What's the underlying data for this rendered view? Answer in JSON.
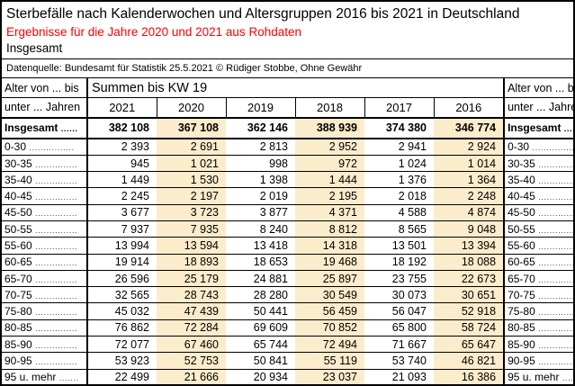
{
  "header": {
    "title": "Sterbefälle nach Kalenderwochen und Altersgruppen 2016 bis 2021 in Deutschland",
    "subtitle_red": "Ergebnisse für die Jahre 2020 und 2021 aus Rohdaten",
    "scope_label": "Insgesamt",
    "source_note": "Datenquelle: Bundesamt für Statistik 25.5.2021 © Rüdiger Stobbe, Ohne Gewähr"
  },
  "colors": {
    "highlight_column_bg": "#FBECCC",
    "subtitle_red": "#FF0000",
    "border": "#000000"
  },
  "table": {
    "corner_header_line1": "Alter von ... bis",
    "corner_header_line2": "unter ... Jahren",
    "span_header": "Summen bis KW 19",
    "years": [
      "2021",
      "2020",
      "2019",
      "2018",
      "2017",
      "2016"
    ],
    "highlighted_years": [
      "2020",
      "2018",
      "2016"
    ],
    "totals": {
      "label": "Insgesamt",
      "dots": "......",
      "values": [
        "382 108",
        "367 108",
        "362 146",
        "388 939",
        "374 380",
        "346 774"
      ]
    },
    "rows": [
      {
        "label": "0-30",
        "dots": "................",
        "values": [
          "2 393",
          "2 691",
          "2 813",
          "2 952",
          "2 941",
          "2 924"
        ]
      },
      {
        "label": "30-35",
        "dots": "...............",
        "values": [
          "945",
          "1 021",
          "998",
          "972",
          "1 024",
          "1 014"
        ]
      },
      {
        "label": "35-40",
        "dots": "...............",
        "values": [
          "1 449",
          "1 530",
          "1 398",
          "1 444",
          "1 376",
          "1 364"
        ]
      },
      {
        "label": "40-45",
        "dots": "...............",
        "values": [
          "2 245",
          "2 197",
          "2 019",
          "2 195",
          "2 018",
          "2 248"
        ]
      },
      {
        "label": "45-50",
        "dots": "...............",
        "values": [
          "3 677",
          "3 723",
          "3 877",
          "4 371",
          "4 588",
          "4 874"
        ]
      },
      {
        "label": "50-55",
        "dots": "...............",
        "values": [
          "7 937",
          "7 935",
          "8 240",
          "8 812",
          "8 565",
          "9 048"
        ]
      },
      {
        "label": "55-60",
        "dots": "...............",
        "values": [
          "13 994",
          "13 594",
          "13 418",
          "14 318",
          "13 501",
          "13 394"
        ]
      },
      {
        "label": "60-65",
        "dots": "...............",
        "values": [
          "19 914",
          "18 893",
          "18 653",
          "19 468",
          "18 192",
          "18 088"
        ]
      },
      {
        "label": "65-70",
        "dots": "...............",
        "values": [
          "26 596",
          "25 179",
          "24 881",
          "25 897",
          "23 755",
          "22 673"
        ]
      },
      {
        "label": "70-75",
        "dots": "...............",
        "values": [
          "32 565",
          "28 743",
          "28 280",
          "30 549",
          "30 073",
          "30 651"
        ]
      },
      {
        "label": "75-80",
        "dots": "...............",
        "values": [
          "45 032",
          "47 439",
          "50 441",
          "56 459",
          "56 047",
          "52 918"
        ]
      },
      {
        "label": "80-85",
        "dots": "...............",
        "values": [
          "76 862",
          "72 284",
          "69 609",
          "70 852",
          "65 800",
          "58 724"
        ]
      },
      {
        "label": "85-90",
        "dots": "...............",
        "values": [
          "72 077",
          "67 460",
          "65 744",
          "72 494",
          "71 667",
          "65 647"
        ]
      },
      {
        "label": "90-95",
        "dots": "...............",
        "values": [
          "53 923",
          "52 753",
          "50 841",
          "55 119",
          "53 740",
          "46 821"
        ]
      },
      {
        "label": "95 u. mehr",
        "dots": ".......",
        "values": [
          "22 499",
          "21 666",
          "20 934",
          "23 037",
          "21 093",
          "16 386"
        ]
      }
    ]
  },
  "chart_data": {
    "type": "table",
    "title": "Sterbefälle nach Kalenderwochen und Altersgruppen 2016 bis 2021 in Deutschland",
    "subtitle": "Ergebnisse für die Jahre 2020 und 2021 aus Rohdaten",
    "scope": "Insgesamt",
    "measure": "Summen bis KW 19",
    "source": "Datenquelle: Bundesamt für Statistik 25.5.2021 © Rüdiger Stobbe, Ohne Gewähr",
    "categories": [
      "0-30",
      "30-35",
      "35-40",
      "40-45",
      "45-50",
      "50-55",
      "55-60",
      "60-65",
      "65-70",
      "70-75",
      "75-80",
      "80-85",
      "85-90",
      "90-95",
      "95 u. mehr"
    ],
    "series": [
      {
        "name": "2021",
        "total": 382108,
        "values": [
          2393,
          945,
          1449,
          2245,
          3677,
          7937,
          13994,
          19914,
          26596,
          32565,
          45032,
          76862,
          72077,
          53923,
          22499
        ]
      },
      {
        "name": "2020",
        "total": 367108,
        "values": [
          2691,
          1021,
          1530,
          2197,
          3723,
          7935,
          13594,
          18893,
          25179,
          28743,
          47439,
          72284,
          67460,
          52753,
          21666
        ]
      },
      {
        "name": "2019",
        "total": 362146,
        "values": [
          2813,
          998,
          1398,
          2019,
          3877,
          8240,
          13418,
          18653,
          24881,
          28280,
          50441,
          69609,
          65744,
          50841,
          20934
        ]
      },
      {
        "name": "2018",
        "total": 388939,
        "values": [
          2952,
          972,
          1444,
          2195,
          4371,
          8812,
          14318,
          19468,
          25897,
          30549,
          56459,
          70852,
          72494,
          55119,
          23037
        ]
      },
      {
        "name": "2017",
        "total": 374380,
        "values": [
          2941,
          1024,
          1376,
          2018,
          4588,
          8565,
          13501,
          18192,
          23755,
          30073,
          56047,
          65800,
          71667,
          53740,
          21093
        ]
      },
      {
        "name": "2016",
        "total": 346774,
        "values": [
          2924,
          1014,
          1364,
          2248,
          4874,
          9048,
          13394,
          18088,
          22673,
          30651,
          52918,
          58724,
          65647,
          46821,
          16386
        ]
      }
    ],
    "highlighted_series": [
      "2020",
      "2018",
      "2016"
    ]
  }
}
